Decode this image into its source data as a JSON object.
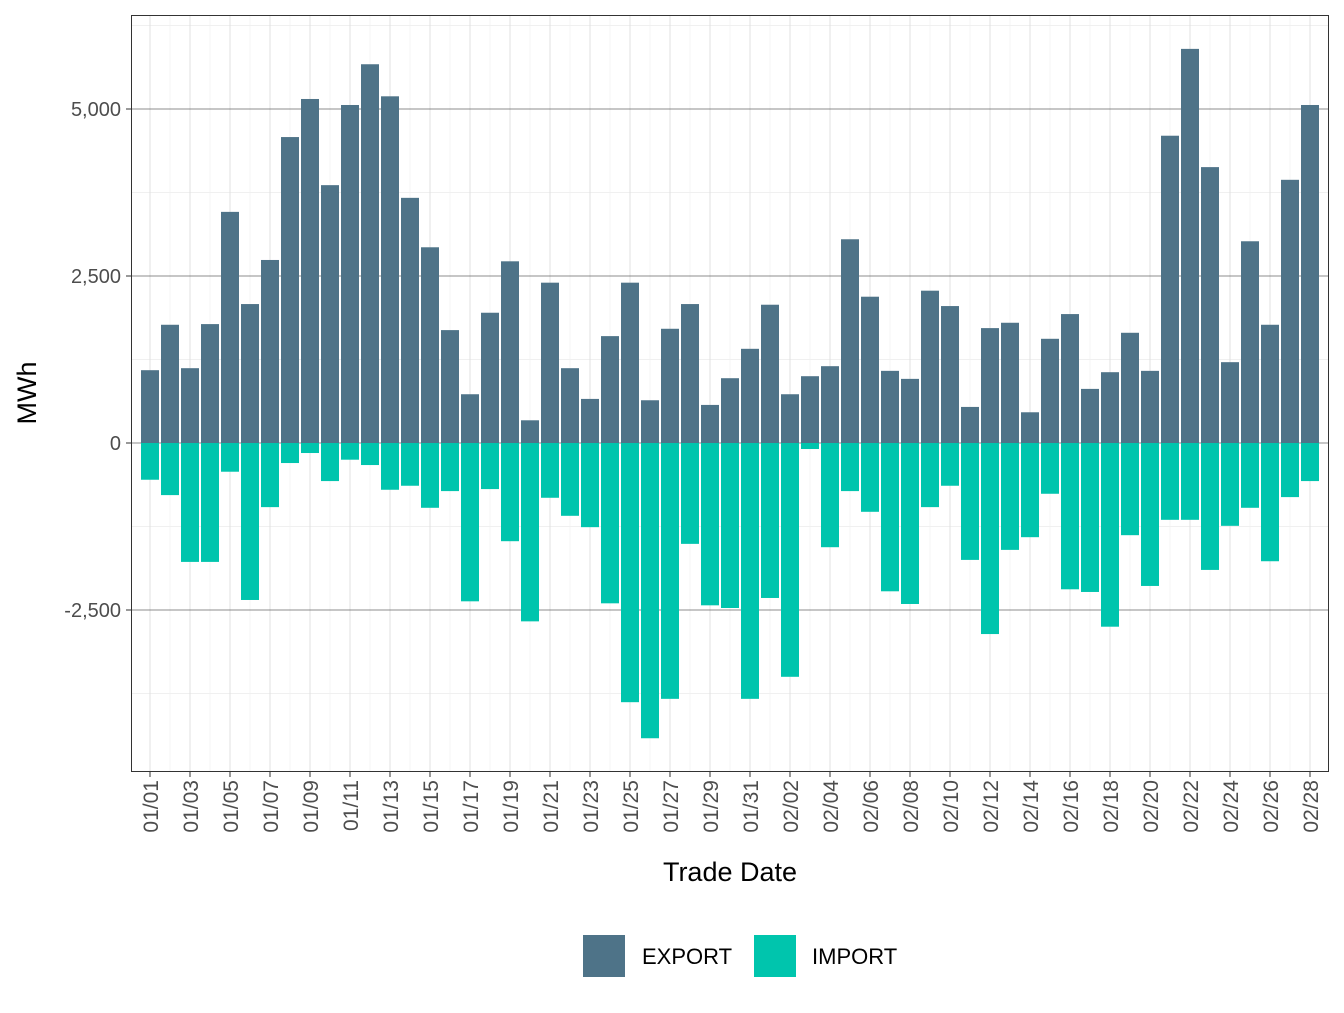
{
  "chart_data": {
    "type": "bar",
    "stacked": "diverging",
    "xlabel": "Trade Date",
    "ylabel": "MWh",
    "ylim": [
      -4910,
      6400
    ],
    "yticks": [
      -2500,
      0,
      2500,
      5000
    ],
    "ytick_labels": [
      "-2,500",
      "0",
      "2,500",
      "5,000"
    ],
    "grid": true,
    "legend_position": "bottom",
    "categories": [
      "01/01",
      "01/02",
      "01/03",
      "01/04",
      "01/05",
      "01/06",
      "01/07",
      "01/08",
      "01/09",
      "01/10",
      "01/11",
      "01/12",
      "01/13",
      "01/14",
      "01/15",
      "01/16",
      "01/17",
      "01/18",
      "01/19",
      "01/20",
      "01/21",
      "01/22",
      "01/23",
      "01/24",
      "01/25",
      "01/26",
      "01/27",
      "01/28",
      "01/29",
      "01/30",
      "01/31",
      "02/01",
      "02/02",
      "02/03",
      "02/04",
      "02/05",
      "02/06",
      "02/07",
      "02/08",
      "02/09",
      "02/10",
      "02/11",
      "02/12",
      "02/13",
      "02/14",
      "02/15",
      "02/16",
      "02/17",
      "02/18",
      "02/19",
      "02/20",
      "02/21",
      "02/22",
      "02/23",
      "02/24",
      "02/25",
      "02/26",
      "02/27",
      "02/28"
    ],
    "series": [
      {
        "name": "EXPORT",
        "color": "#4e7388",
        "values": [
          1090,
          1770,
          1120,
          1780,
          3460,
          2080,
          2740,
          4580,
          5150,
          3860,
          5060,
          5670,
          5190,
          3670,
          2930,
          1690,
          730,
          1950,
          2720,
          340,
          2400,
          1120,
          660,
          1600,
          2400,
          640,
          1710,
          2080,
          570,
          970,
          1410,
          2070,
          730,
          1000,
          1150,
          3050,
          2190,
          1080,
          960,
          2280,
          2050,
          540,
          1720,
          1800,
          460,
          1560,
          1930,
          810,
          1060,
          1650,
          1080,
          4600,
          5900,
          4130,
          1210,
          3020,
          1770,
          3940,
          5060
        ]
      },
      {
        "name": "IMPORT",
        "color": "#00c5ad",
        "values": [
          -550,
          -780,
          -1780,
          -1780,
          -430,
          -2350,
          -960,
          -300,
          -150,
          -570,
          -250,
          -330,
          -700,
          -640,
          -970,
          -720,
          -2370,
          -690,
          -1470,
          -2670,
          -820,
          -1090,
          -1260,
          -2400,
          -3880,
          -4420,
          -3830,
          -1510,
          -2430,
          -2470,
          -3830,
          -2320,
          -3500,
          -90,
          -1560,
          -720,
          -1030,
          -2220,
          -2410,
          -960,
          -640,
          -1750,
          -2860,
          -1600,
          -1410,
          -760,
          -2190,
          -2230,
          -2750,
          -1380,
          -2140,
          -1150,
          -1150,
          -1900,
          -1240,
          -970,
          -1770,
          -810,
          -570
        ]
      }
    ]
  }
}
